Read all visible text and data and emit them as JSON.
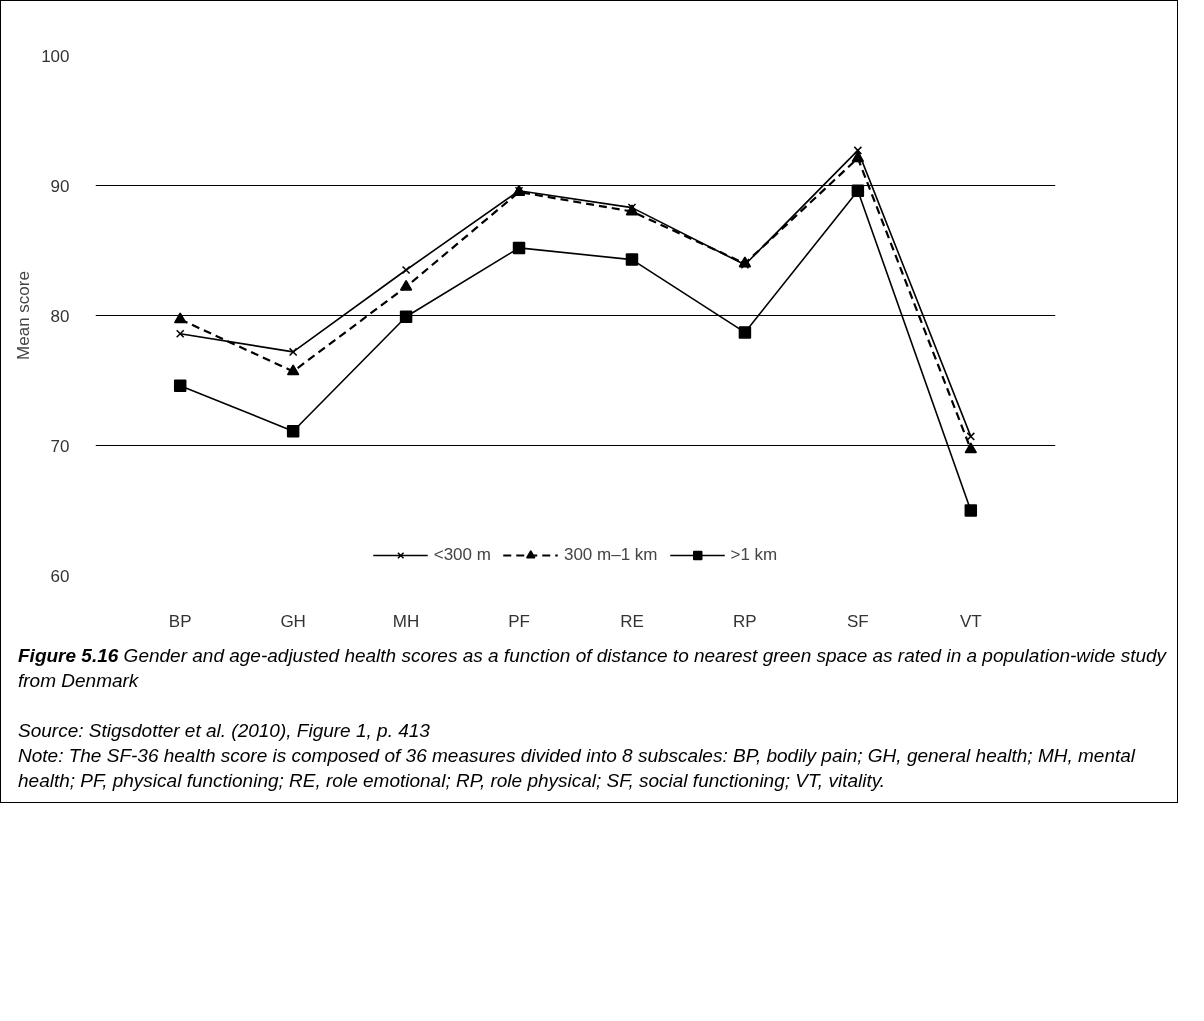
{
  "chart_data": {
    "type": "line",
    "title": "Figure 5.16",
    "subtitle": "Gender and age-adjusted health scores as a function of distance to nearest green space as rated in a population-wide study from Denmark",
    "ylabel": "Mean score",
    "categories": [
      "BP",
      "GH",
      "MH",
      "PF",
      "RE",
      "RP",
      "SF",
      "VT"
    ],
    "series": [
      {
        "name": "<300 m",
        "color": "#000000",
        "marker": "cross",
        "line_style": "solid",
        "values": [
          78.6,
          77.2,
          83.5,
          89.6,
          88.3,
          83.9,
          92.7,
          70.7
        ]
      },
      {
        "name": "300 m–1 km",
        "color": "#000000",
        "marker": "triangle",
        "line_style": "dashed",
        "values": [
          79.7,
          75.7,
          82.2,
          89.5,
          88.0,
          84.0,
          92.1,
          69.7
        ]
      },
      {
        "name": ">1 km",
        "color": "#000000",
        "marker": "square",
        "line_style": "solid",
        "values": [
          74.6,
          71.1,
          79.9,
          85.2,
          84.3,
          78.7,
          89.6,
          65.0
        ]
      }
    ],
    "ylim": [
      60,
      100
    ],
    "yticks": [
      60,
      70,
      80,
      90,
      100
    ],
    "grid": "y",
    "legend": "bottom",
    "annotations": [
      "Source: Stigsdotter et al. (2010), Figure 1, p. 413",
      "Note: The SF-36 health score is composed of 36 measures divided into 8 subscales: BP, bodily pain; GH, general health; MH, mental health; PF, physical functioning; RE, role emotional; RP, role physical; SF, social functioning; VT, vitality."
    ]
  }
}
